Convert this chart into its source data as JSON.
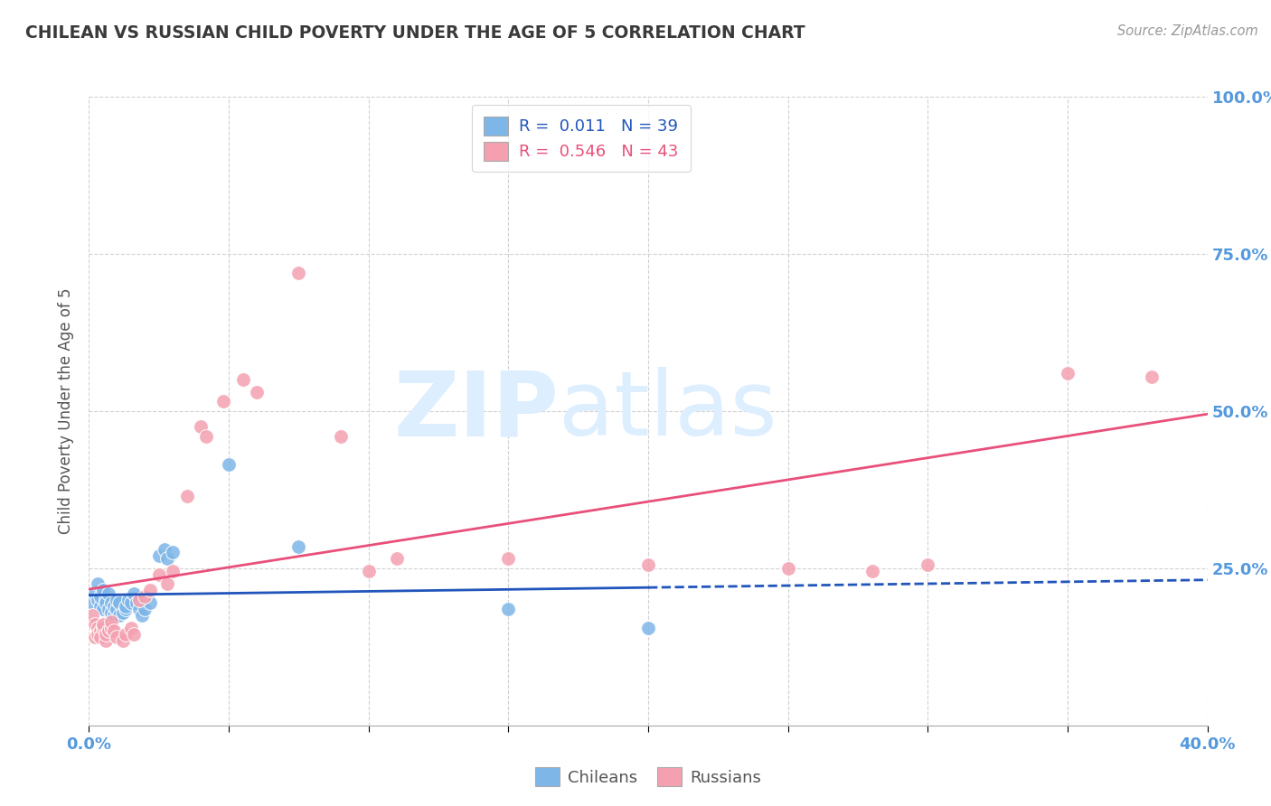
{
  "title": "CHILEAN VS RUSSIAN CHILD POVERTY UNDER THE AGE OF 5 CORRELATION CHART",
  "source": "Source: ZipAtlas.com",
  "ylabel": "Child Poverty Under the Age of 5",
  "xlim": [
    0.0,
    0.4
  ],
  "ylim": [
    0.0,
    1.0
  ],
  "chilean_color": "#7eb6e8",
  "russian_color": "#f4a0b0",
  "chilean_line_color": "#2255bb",
  "russian_line_color": "#e8507a",
  "chilean_R": 0.011,
  "russian_R": 0.546,
  "chilean_N": 39,
  "russian_N": 43,
  "chilean_scatter": [
    [
      0.001,
      0.195
    ],
    [
      0.002,
      0.21
    ],
    [
      0.003,
      0.225
    ],
    [
      0.003,
      0.2
    ],
    [
      0.004,
      0.19
    ],
    [
      0.004,
      0.205
    ],
    [
      0.005,
      0.215
    ],
    [
      0.005,
      0.185
    ],
    [
      0.006,
      0.2
    ],
    [
      0.006,
      0.195
    ],
    [
      0.007,
      0.21
    ],
    [
      0.007,
      0.185
    ],
    [
      0.008,
      0.195
    ],
    [
      0.008,
      0.18
    ],
    [
      0.009,
      0.175
    ],
    [
      0.009,
      0.19
    ],
    [
      0.01,
      0.185
    ],
    [
      0.01,
      0.2
    ],
    [
      0.011,
      0.175
    ],
    [
      0.011,
      0.195
    ],
    [
      0.012,
      0.18
    ],
    [
      0.013,
      0.185
    ],
    [
      0.013,
      0.19
    ],
    [
      0.014,
      0.2
    ],
    [
      0.015,
      0.195
    ],
    [
      0.016,
      0.21
    ],
    [
      0.017,
      0.195
    ],
    [
      0.018,
      0.185
    ],
    [
      0.019,
      0.175
    ],
    [
      0.02,
      0.185
    ],
    [
      0.022,
      0.195
    ],
    [
      0.025,
      0.27
    ],
    [
      0.027,
      0.28
    ],
    [
      0.028,
      0.265
    ],
    [
      0.03,
      0.275
    ],
    [
      0.05,
      0.415
    ],
    [
      0.075,
      0.285
    ],
    [
      0.15,
      0.185
    ],
    [
      0.2,
      0.155
    ]
  ],
  "russian_scatter": [
    [
      0.001,
      0.175
    ],
    [
      0.002,
      0.16
    ],
    [
      0.002,
      0.14
    ],
    [
      0.003,
      0.155
    ],
    [
      0.003,
      0.145
    ],
    [
      0.004,
      0.15
    ],
    [
      0.004,
      0.14
    ],
    [
      0.005,
      0.155
    ],
    [
      0.005,
      0.16
    ],
    [
      0.006,
      0.135
    ],
    [
      0.006,
      0.145
    ],
    [
      0.007,
      0.15
    ],
    [
      0.008,
      0.155
    ],
    [
      0.008,
      0.165
    ],
    [
      0.009,
      0.15
    ],
    [
      0.01,
      0.14
    ],
    [
      0.012,
      0.135
    ],
    [
      0.013,
      0.145
    ],
    [
      0.015,
      0.155
    ],
    [
      0.016,
      0.145
    ],
    [
      0.018,
      0.2
    ],
    [
      0.02,
      0.205
    ],
    [
      0.022,
      0.215
    ],
    [
      0.025,
      0.24
    ],
    [
      0.028,
      0.225
    ],
    [
      0.03,
      0.245
    ],
    [
      0.035,
      0.365
    ],
    [
      0.04,
      0.475
    ],
    [
      0.042,
      0.46
    ],
    [
      0.048,
      0.515
    ],
    [
      0.055,
      0.55
    ],
    [
      0.06,
      0.53
    ],
    [
      0.075,
      0.72
    ],
    [
      0.09,
      0.46
    ],
    [
      0.1,
      0.245
    ],
    [
      0.11,
      0.265
    ],
    [
      0.15,
      0.265
    ],
    [
      0.2,
      0.255
    ],
    [
      0.25,
      0.25
    ],
    [
      0.28,
      0.245
    ],
    [
      0.3,
      0.255
    ],
    [
      0.35,
      0.56
    ],
    [
      0.38,
      0.555
    ]
  ],
  "background_color": "#ffffff",
  "grid_color": "#cccccc",
  "title_color": "#3a3a3a",
  "axis_label_color": "#5599dd",
  "watermark_zip": "ZIP",
  "watermark_atlas": "atlas",
  "watermark_color": "#ddeeff"
}
